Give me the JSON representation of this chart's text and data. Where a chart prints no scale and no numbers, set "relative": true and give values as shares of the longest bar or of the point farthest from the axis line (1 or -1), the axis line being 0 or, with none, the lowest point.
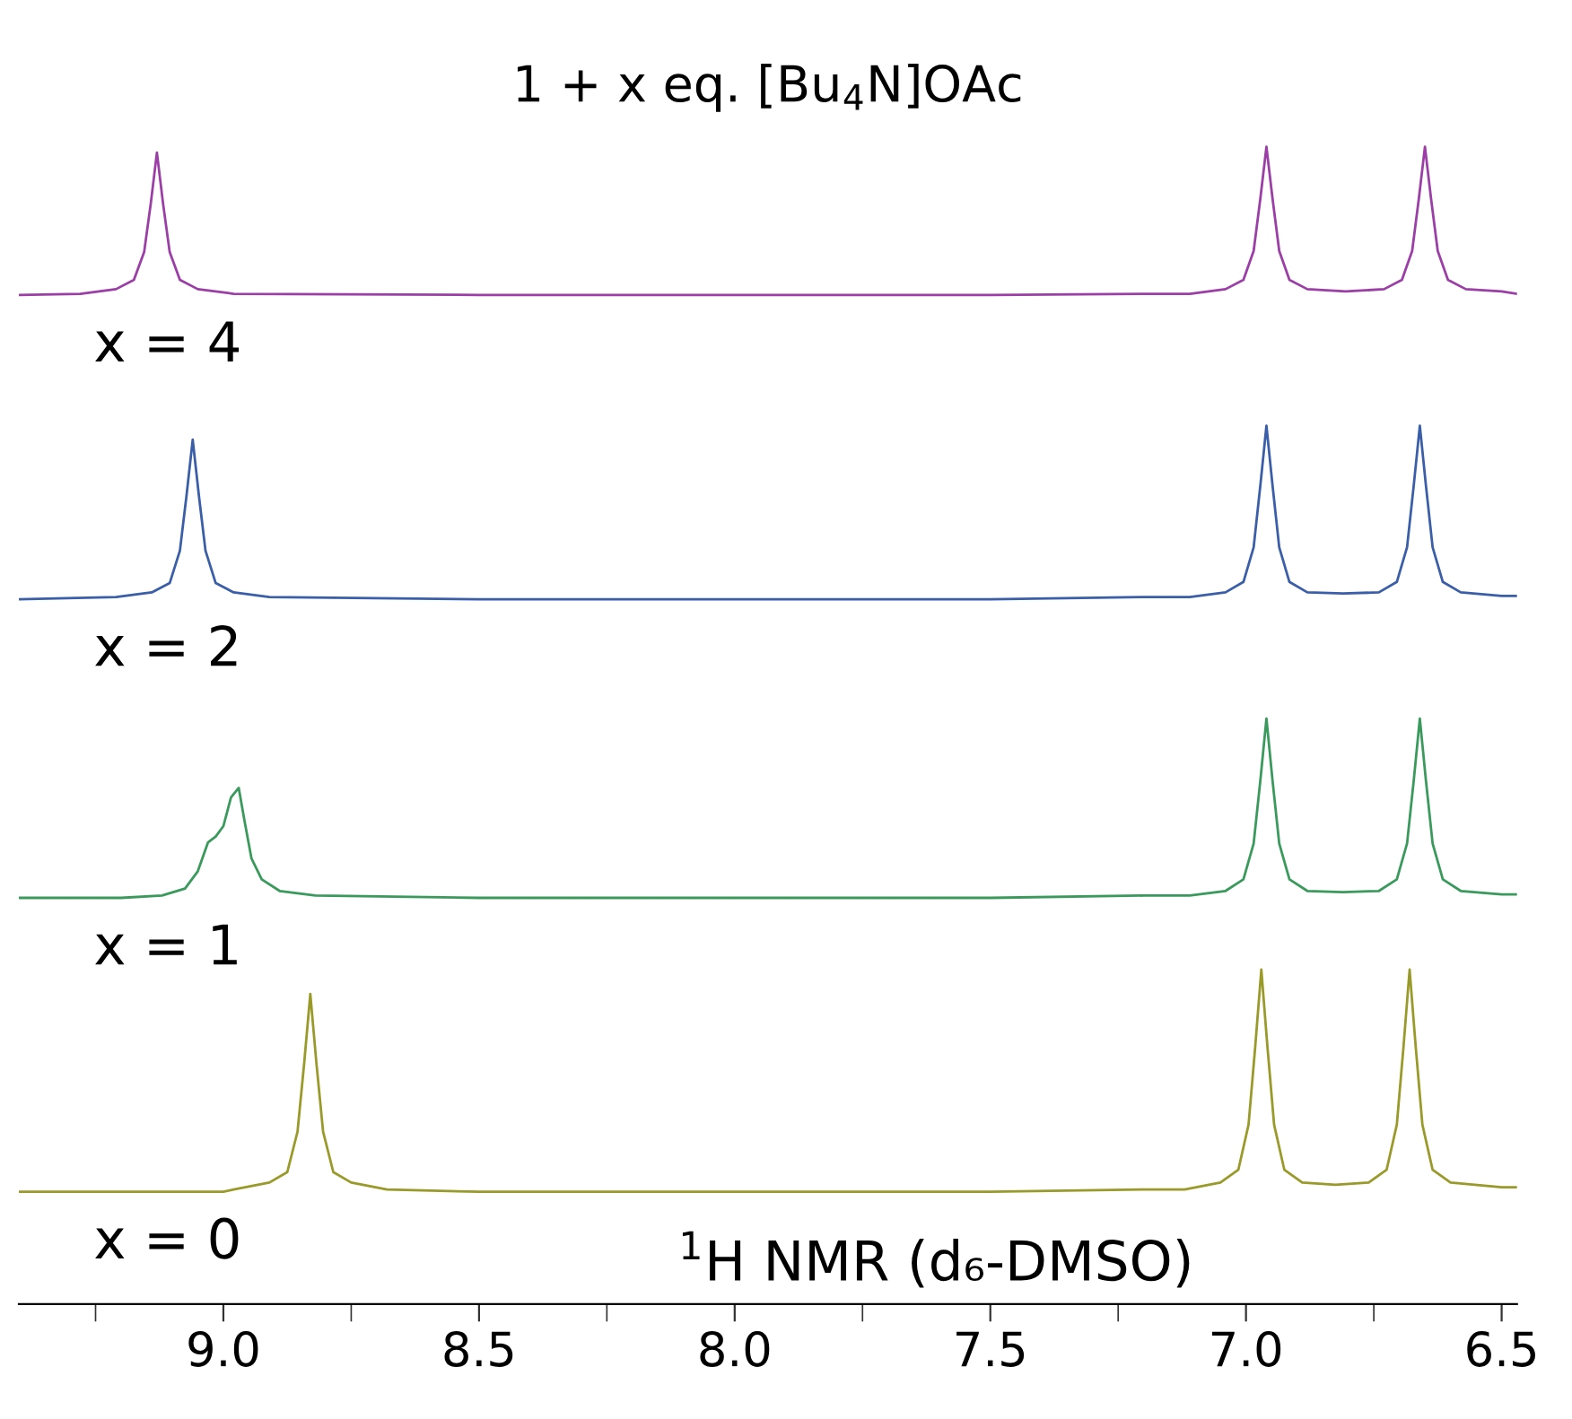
{
  "chart_data": {
    "type": "line",
    "title": "1 + x eq. [Bu$_{4}$N]OAc",
    "relative": true,
    "xlim": [
      9.4,
      6.47
    ],
    "xticks": [
      {
        "value": 9.25,
        "label": null
      },
      {
        "value": 9.0,
        "label": "9.0"
      },
      {
        "value": 8.75,
        "label": null
      },
      {
        "value": 8.5,
        "label": "8.5"
      },
      {
        "value": 8.25,
        "label": null
      },
      {
        "value": 8.0,
        "label": "8.0"
      },
      {
        "value": 7.75,
        "label": null
      },
      {
        "value": 7.5,
        "label": "7.5"
      },
      {
        "value": 7.25,
        "label": null
      },
      {
        "value": 7.0,
        "label": "7.0"
      },
      {
        "value": 6.75,
        "label": null
      },
      {
        "value": 6.5,
        "label": "6.5"
      }
    ],
    "tick_labels": "x",
    "grid": false,
    "marker": "none",
    "line_style": "solid",
    "annotations": [
      "$^{1}$H NMR (d₆-DMSO)"
    ],
    "series": [
      {
        "name": "x = 4",
        "color": "#9b3fa6",
        "x": [
          9.4,
          9.28,
          9.21,
          9.175,
          9.155,
          9.142,
          9.13,
          9.118,
          9.105,
          9.085,
          9.05,
          8.98,
          8.5,
          8.0,
          7.5,
          7.2,
          7.11,
          7.04,
          7.005,
          6.985,
          6.972,
          6.96,
          6.948,
          6.935,
          6.915,
          6.88,
          6.805,
          6.73,
          6.695,
          6.675,
          6.662,
          6.65,
          6.638,
          6.625,
          6.605,
          6.57,
          6.5,
          6.47
        ],
        "values": [
          0.872,
          0.873,
          0.877,
          0.885,
          0.909,
          0.951,
          0.995,
          0.951,
          0.909,
          0.885,
          0.877,
          0.873,
          0.872,
          0.872,
          0.872,
          0.873,
          0.873,
          0.877,
          0.885,
          0.91,
          0.955,
          1,
          0.955,
          0.91,
          0.885,
          0.877,
          0.875,
          0.877,
          0.885,
          0.91,
          0.955,
          1,
          0.955,
          0.91,
          0.885,
          0.877,
          0.875,
          0.873
        ]
      },
      {
        "name": "x = 2",
        "color": "#3a5fa8",
        "x": [
          9.4,
          9.21,
          9.14,
          9.105,
          9.085,
          9.072,
          9.06,
          9.048,
          9.035,
          9.015,
          8.98,
          8.91,
          8.5,
          8.0,
          7.5,
          7.2,
          7.11,
          7.04,
          7.005,
          6.985,
          6.972,
          6.96,
          6.948,
          6.935,
          6.915,
          6.88,
          6.81,
          6.74,
          6.705,
          6.685,
          6.672,
          6.66,
          6.648,
          6.635,
          6.615,
          6.58,
          6.5,
          6.47
        ],
        "values": [
          0.609,
          0.611,
          0.615,
          0.623,
          0.651,
          0.699,
          0.747,
          0.699,
          0.651,
          0.623,
          0.615,
          0.611,
          0.609,
          0.609,
          0.609,
          0.611,
          0.611,
          0.615,
          0.624,
          0.654,
          0.707,
          0.759,
          0.707,
          0.654,
          0.624,
          0.615,
          0.614,
          0.615,
          0.624,
          0.654,
          0.707,
          0.759,
          0.707,
          0.654,
          0.624,
          0.615,
          0.612,
          0.612
        ]
      },
      {
        "name": "x = 1",
        "color": "#3a9a5c",
        "x": [
          9.4,
          9.2,
          9.12,
          9.075,
          9.05,
          9.03,
          9.015,
          9.0,
          8.985,
          8.97,
          8.958,
          8.945,
          8.925,
          8.89,
          8.82,
          8.5,
          8.0,
          7.5,
          7.2,
          7.11,
          7.04,
          7.005,
          6.985,
          6.972,
          6.96,
          6.948,
          6.935,
          6.915,
          6.88,
          6.81,
          6.74,
          6.705,
          6.685,
          6.672,
          6.66,
          6.648,
          6.635,
          6.615,
          6.58,
          6.5,
          6.47
        ],
        "values": [
          0.351,
          0.351,
          0.353,
          0.359,
          0.374,
          0.399,
          0.404,
          0.413,
          0.438,
          0.446,
          0.416,
          0.385,
          0.367,
          0.357,
          0.353,
          0.351,
          0.351,
          0.351,
          0.353,
          0.353,
          0.357,
          0.367,
          0.398,
          0.452,
          0.506,
          0.452,
          0.398,
          0.367,
          0.357,
          0.356,
          0.357,
          0.367,
          0.398,
          0.452,
          0.506,
          0.452,
          0.398,
          0.367,
          0.357,
          0.354,
          0.354
        ]
      },
      {
        "name": "x = 0",
        "color": "#9a9a2a",
        "x": [
          9.4,
          9.0,
          8.98,
          8.91,
          8.875,
          8.855,
          8.842,
          8.83,
          8.818,
          8.805,
          8.785,
          8.75,
          8.68,
          8.5,
          8.0,
          7.5,
          7.2,
          7.12,
          7.05,
          7.015,
          6.995,
          6.982,
          6.97,
          6.958,
          6.945,
          6.925,
          6.89,
          6.825,
          6.76,
          6.725,
          6.705,
          6.692,
          6.68,
          6.668,
          6.655,
          6.635,
          6.6,
          6.5,
          6.47
        ],
        "values": [
          0.097,
          0.097,
          0.099,
          0.105,
          0.114,
          0.149,
          0.208,
          0.268,
          0.208,
          0.149,
          0.114,
          0.105,
          0.099,
          0.097,
          0.097,
          0.097,
          0.099,
          0.099,
          0.105,
          0.116,
          0.155,
          0.222,
          0.289,
          0.222,
          0.155,
          0.116,
          0.105,
          0.103,
          0.105,
          0.116,
          0.155,
          0.222,
          0.289,
          0.222,
          0.155,
          0.116,
          0.105,
          0.101,
          0.101
        ]
      }
    ]
  }
}
